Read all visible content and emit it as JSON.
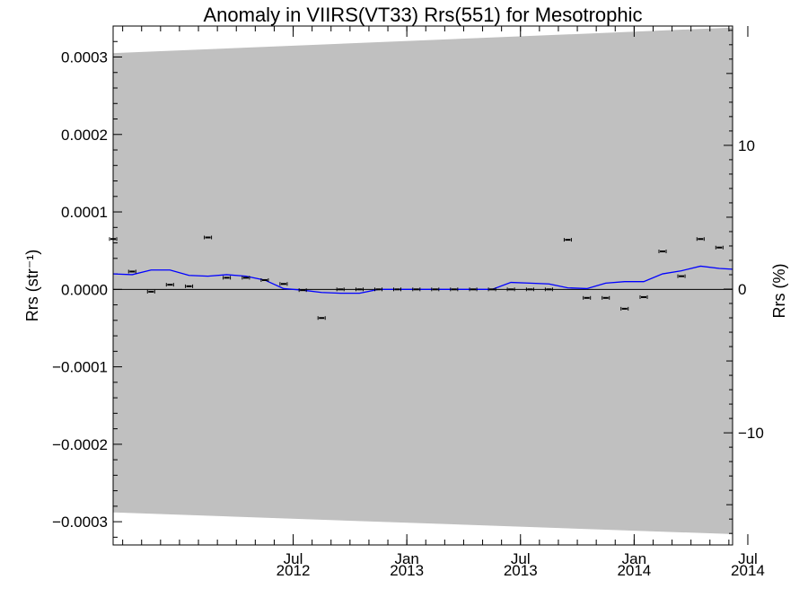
{
  "chart_data": {
    "type": "scatter",
    "title": "Anomaly in VIIRS(VT33) Rrs(551) for Mesotrophic",
    "ylabel_left": "Rrs (str⁻¹)",
    "ylabel_right": "Rrs (%)",
    "xlabel": "",
    "xlim": [
      2011.708,
      2014.433
    ],
    "ylim": [
      -0.00033,
      0.00034
    ],
    "ylim_right": [
      -17.8,
      18.3
    ],
    "yticks_left": [
      {
        "value": 0.0003,
        "label": "0.0003"
      },
      {
        "value": 0.0002,
        "label": "0.0002"
      },
      {
        "value": 0.0001,
        "label": "0.0001"
      },
      {
        "value": 0.0,
        "label": "0.0000"
      },
      {
        "value": -0.0001,
        "label": "−0.0001"
      },
      {
        "value": -0.0002,
        "label": "−0.0002"
      },
      {
        "value": -0.0003,
        "label": "−0.0003"
      }
    ],
    "yticks_right": [
      {
        "value": 10,
        "label": "10"
      },
      {
        "value": 0,
        "label": "0"
      },
      {
        "value": -10,
        "label": "−10"
      }
    ],
    "xticks": [
      {
        "value": 2012.5,
        "month": "Jul",
        "year": "2012"
      },
      {
        "value": 2013.0,
        "month": "Jan",
        "year": "2013"
      },
      {
        "value": 2013.5,
        "month": "Jul",
        "year": "2013"
      },
      {
        "value": 2014.0,
        "month": "Jan",
        "year": "2014"
      },
      {
        "value": 2014.5,
        "month": "Jul",
        "year": "2014"
      }
    ],
    "x_minor_step_months": 1,
    "uncertainty_band": {
      "color": "#c0c0c0",
      "upper": [
        [
          2011.708,
          0.000305
        ],
        [
          2014.433,
          0.000338
        ]
      ],
      "lower": [
        [
          2011.708,
          -0.000288
        ],
        [
          2014.433,
          -0.000316
        ]
      ]
    },
    "zero_line": {
      "value": 0.0,
      "color": "#000000"
    },
    "series": [
      {
        "kind": "points_with_errorbars",
        "color": "#000000",
        "points": [
          {
            "x": 2011.708,
            "y": 6.5e-05
          },
          {
            "x": 2011.792,
            "y": 2.3e-05
          },
          {
            "x": 2011.875,
            "y": -3e-06
          },
          {
            "x": 2011.958,
            "y": 6e-06
          },
          {
            "x": 2012.042,
            "y": 4e-06
          },
          {
            "x": 2012.125,
            "y": 6.7e-05
          },
          {
            "x": 2012.208,
            "y": 1.5e-05
          },
          {
            "x": 2012.292,
            "y": 1.5e-05
          },
          {
            "x": 2012.375,
            "y": 1.2e-05
          },
          {
            "x": 2012.458,
            "y": 7e-06
          },
          {
            "x": 2012.542,
            "y": -1e-06
          },
          {
            "x": 2012.625,
            "y": -3.7e-05
          },
          {
            "x": 2012.708,
            "y": 0.0
          },
          {
            "x": 2012.792,
            "y": 0.0
          },
          {
            "x": 2012.875,
            "y": 0.0
          },
          {
            "x": 2012.958,
            "y": 0.0
          },
          {
            "x": 2013.042,
            "y": 0.0
          },
          {
            "x": 2013.125,
            "y": 0.0
          },
          {
            "x": 2013.208,
            "y": 0.0
          },
          {
            "x": 2013.292,
            "y": 0.0
          },
          {
            "x": 2013.375,
            "y": 0.0
          },
          {
            "x": 2013.458,
            "y": 0.0
          },
          {
            "x": 2013.542,
            "y": 0.0
          },
          {
            "x": 2013.625,
            "y": 0.0
          },
          {
            "x": 2013.708,
            "y": 6.4e-05
          },
          {
            "x": 2013.792,
            "y": -1.1e-05
          },
          {
            "x": 2013.875,
            "y": -1.1e-05
          },
          {
            "x": 2013.958,
            "y": -2.5e-05
          },
          {
            "x": 2014.042,
            "y": -1e-05
          },
          {
            "x": 2014.125,
            "y": 4.9e-05
          },
          {
            "x": 2014.208,
            "y": 1.7e-05
          },
          {
            "x": 2014.292,
            "y": 6.5e-05
          },
          {
            "x": 2014.375,
            "y": 5.4e-05
          }
        ]
      },
      {
        "kind": "line",
        "color": "#0000ff",
        "points": [
          [
            2011.708,
            2e-05
          ],
          [
            2011.792,
            1.9e-05
          ],
          [
            2011.875,
            2.5e-05
          ],
          [
            2011.958,
            2.5e-05
          ],
          [
            2012.042,
            1.8e-05
          ],
          [
            2012.125,
            1.7e-05
          ],
          [
            2012.208,
            1.9e-05
          ],
          [
            2012.292,
            1.7e-05
          ],
          [
            2012.375,
            1.2e-05
          ],
          [
            2012.458,
            1e-06
          ],
          [
            2012.542,
            -1e-06
          ],
          [
            2012.625,
            -4e-06
          ],
          [
            2012.708,
            -5e-06
          ],
          [
            2012.792,
            -5e-06
          ],
          [
            2012.875,
            0.0
          ],
          [
            2012.958,
            0.0
          ],
          [
            2013.042,
            0.0
          ],
          [
            2013.125,
            0.0
          ],
          [
            2013.208,
            0.0
          ],
          [
            2013.292,
            0.0
          ],
          [
            2013.375,
            0.0
          ],
          [
            2013.458,
            9e-06
          ],
          [
            2013.542,
            8e-06
          ],
          [
            2013.625,
            7e-06
          ],
          [
            2013.708,
            2e-06
          ],
          [
            2013.792,
            1e-06
          ],
          [
            2013.875,
            8e-06
          ],
          [
            2013.958,
            1e-05
          ],
          [
            2014.042,
            1e-05
          ],
          [
            2014.125,
            2e-05
          ],
          [
            2014.208,
            2.4e-05
          ],
          [
            2014.292,
            3e-05
          ],
          [
            2014.375,
            2.7e-05
          ],
          [
            2014.433,
            2.6e-05
          ]
        ]
      }
    ],
    "grid": false,
    "legend": "none"
  }
}
